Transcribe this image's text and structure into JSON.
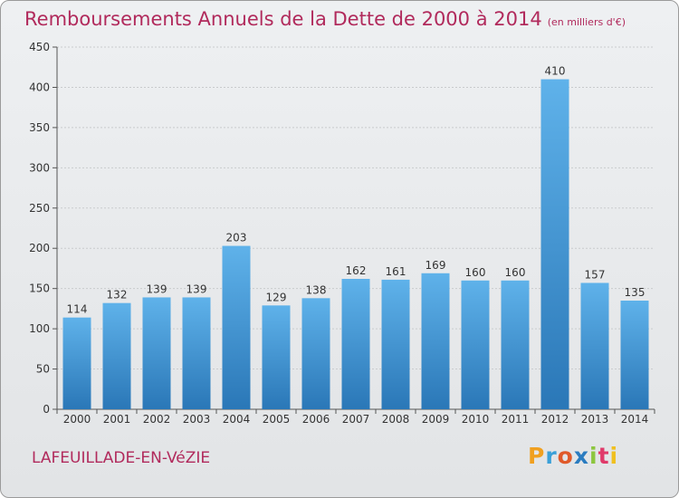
{
  "colors": {
    "title": "#b12a5c",
    "bar_top": "#5fb2ea",
    "bar_bottom": "#2a77b7"
  },
  "header": {
    "title": "Remboursements Annuels de la Dette de 2000 à 2014",
    "unit": "(en milliers d'€)"
  },
  "footer": {
    "commune": "LAFEUILLADE-EN-VéZIE",
    "brand": "Proxiti"
  },
  "chart_data": {
    "type": "bar",
    "title": "Remboursements Annuels de la Dette de 2000 à 2014",
    "subtitle": "(en milliers d'€)",
    "xlabel": "",
    "ylabel": "",
    "categories": [
      "2000",
      "2001",
      "2002",
      "2003",
      "2004",
      "2005",
      "2006",
      "2007",
      "2008",
      "2009",
      "2010",
      "2011",
      "2012",
      "2013",
      "2014"
    ],
    "values": [
      114,
      132,
      139,
      139,
      203,
      129,
      138,
      162,
      161,
      169,
      160,
      160,
      410,
      157,
      135
    ],
    "ylim": [
      0,
      450
    ],
    "yticks": [
      0,
      50,
      100,
      150,
      200,
      250,
      300,
      350,
      400,
      450
    ],
    "grid": true
  }
}
